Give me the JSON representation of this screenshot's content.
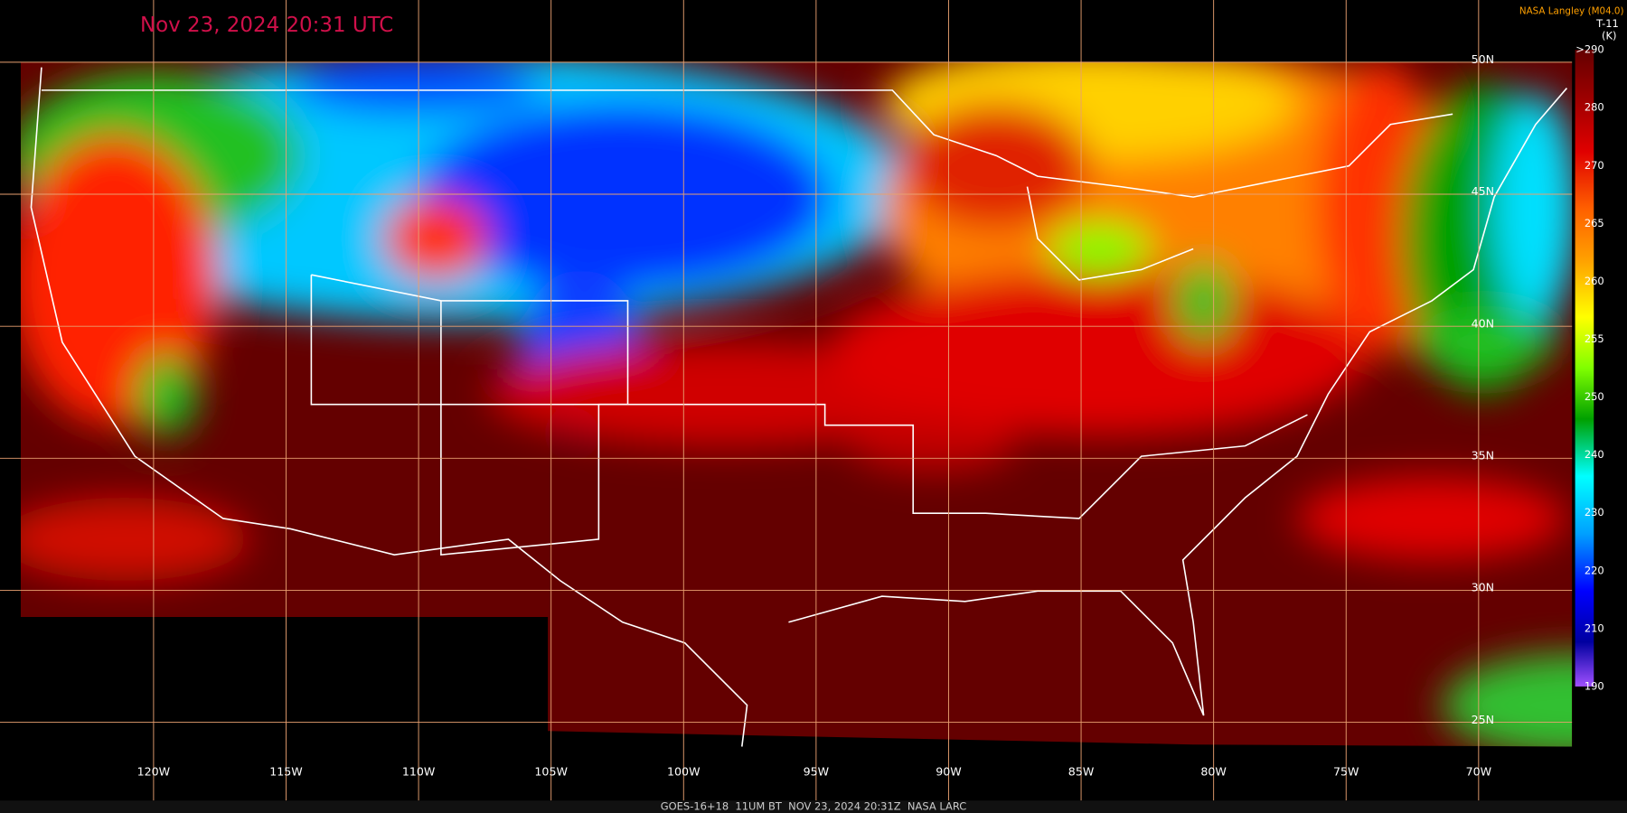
{
  "header": {
    "title": "Nov 23, 2024 20:31 UTC",
    "credit": "NASA Langley (M04.0)",
    "channel": "T-11",
    "unit": "(K)"
  },
  "map": {
    "longitude_labels": [
      "120W",
      "115W",
      "110W",
      "105W",
      "100W",
      "95W",
      "90W",
      "85W",
      "80W",
      "75W",
      "70W"
    ],
    "latitude_labels": [
      "50N",
      "45N",
      "40N",
      "35N",
      "30N",
      "25N"
    ]
  },
  "colorbar": {
    "labels": [
      ">290",
      "280",
      "270",
      "265",
      "260",
      "255",
      "250",
      "240",
      "230",
      "220",
      "210",
      "190"
    ]
  },
  "footer": {
    "text": "GOES-16+18  11UM BT  NOV 23, 2024 20:31Z  NASA LARC"
  }
}
